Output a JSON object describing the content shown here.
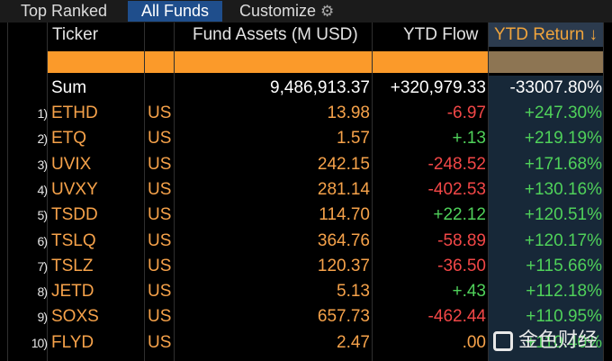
{
  "tabs": {
    "top_ranked": "Top Ranked",
    "all_funds": "All Funds",
    "customize": "Customize"
  },
  "header": {
    "ticker": "Ticker",
    "fund_assets": "Fund Assets (M USD)",
    "ytd_flow": "YTD Flow",
    "ytd_return": "YTD Return ↓"
  },
  "sum": {
    "label": "Sum",
    "fund_assets": "9,486,913.37",
    "ytd_flow": "+320,979.33",
    "ytd_return": "-33007.80%"
  },
  "rows": [
    {
      "index": "1)",
      "ticker": "ETHD",
      "country": "US",
      "fund_assets": "13.98",
      "ytd_flow": "-6.97",
      "ytd_return": "+247.30%"
    },
    {
      "index": "2)",
      "ticker": "ETQ",
      "country": "US",
      "fund_assets": "1.57",
      "ytd_flow": "+.13",
      "ytd_return": "+219.19%"
    },
    {
      "index": "3)",
      "ticker": "UVIX",
      "country": "US",
      "fund_assets": "242.15",
      "ytd_flow": "-248.52",
      "ytd_return": "+171.68%"
    },
    {
      "index": "4)",
      "ticker": "UVXY",
      "country": "US",
      "fund_assets": "281.14",
      "ytd_flow": "-402.53",
      "ytd_return": "+130.16%"
    },
    {
      "index": "5)",
      "ticker": "TSDD",
      "country": "US",
      "fund_assets": "114.70",
      "ytd_flow": "+22.12",
      "ytd_return": "+120.51%"
    },
    {
      "index": "6)",
      "ticker": "TSLQ",
      "country": "US",
      "fund_assets": "364.76",
      "ytd_flow": "-58.89",
      "ytd_return": "+120.17%"
    },
    {
      "index": "7)",
      "ticker": "TSLZ",
      "country": "US",
      "fund_assets": "120.37",
      "ytd_flow": "-36.50",
      "ytd_return": "+115.66%"
    },
    {
      "index": "8)",
      "ticker": "JETD",
      "country": "US",
      "fund_assets": "5.13",
      "ytd_flow": "+.43",
      "ytd_return": "+112.18%"
    },
    {
      "index": "9)",
      "ticker": "SOXS",
      "country": "US",
      "fund_assets": "657.73",
      "ytd_flow": "-462.44",
      "ytd_return": "+110.95%"
    },
    {
      "index": "10)",
      "ticker": "FLYD",
      "country": "US",
      "fund_assets": "2.47",
      "ytd_flow": ".00",
      "ytd_return": "+110.40%"
    }
  ],
  "watermark": "金色财经",
  "colors": {
    "orange_text": "#f6a24a",
    "negative": "#f24747",
    "positive": "#4fd15a",
    "active_tab": "#1f4e8c",
    "sorted_header_text": "#f0a43c"
  }
}
